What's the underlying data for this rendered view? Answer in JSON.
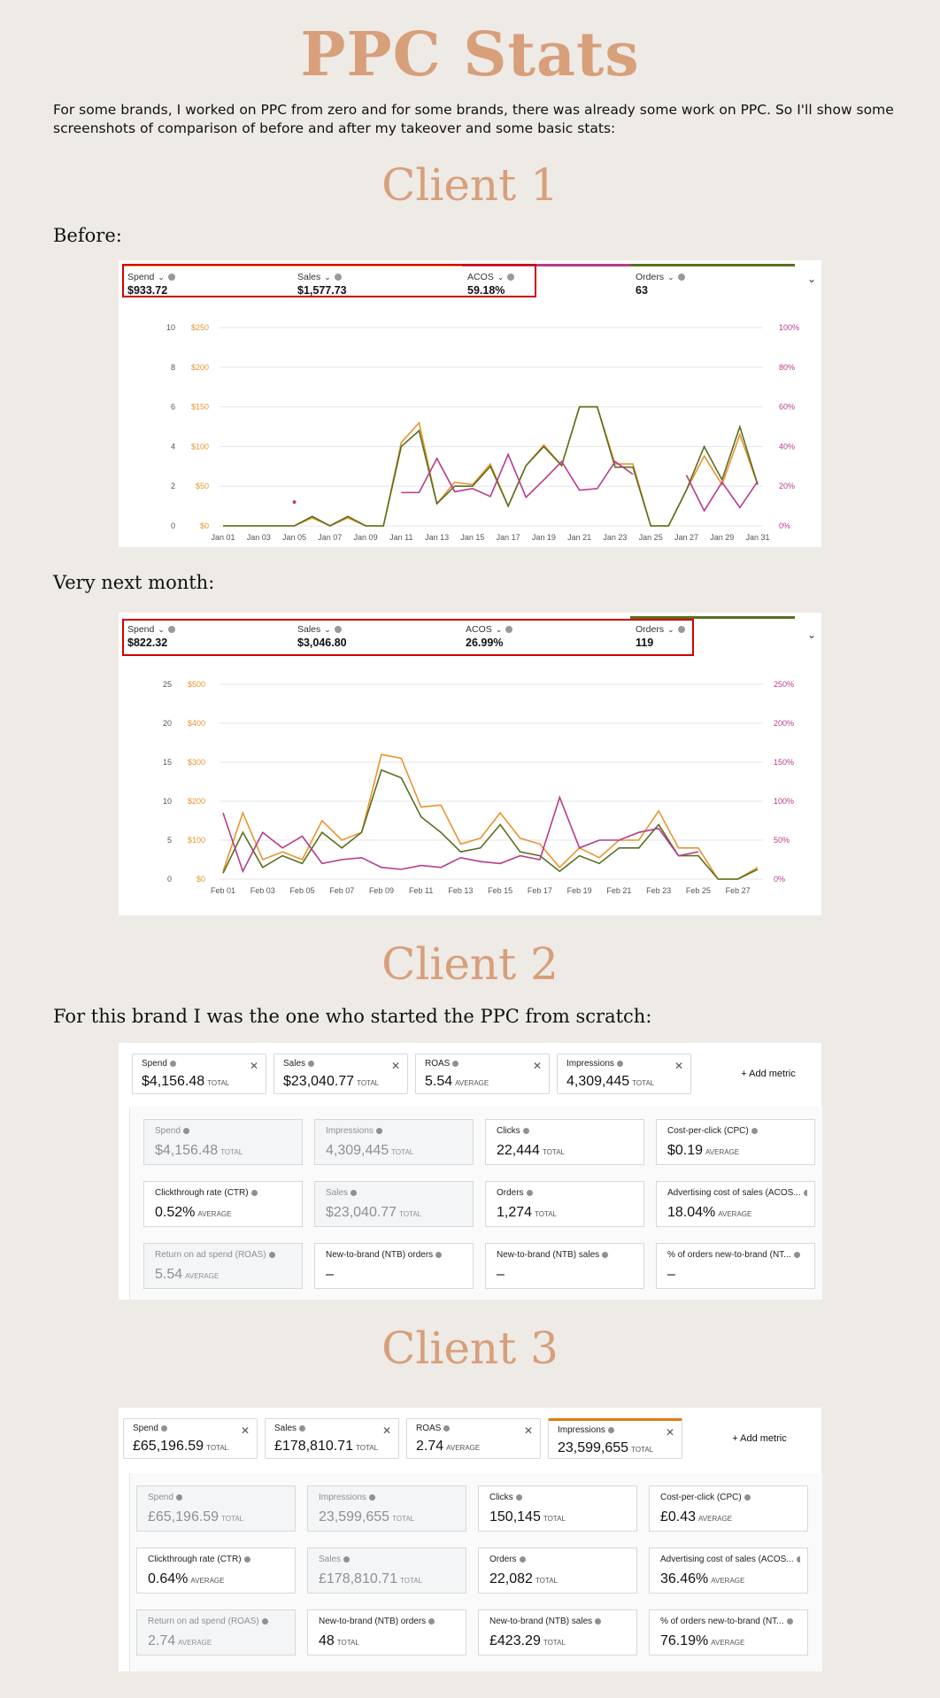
{
  "title": "PPC Stats",
  "intro": "For some brands, I worked on PPC from zero and for some brands, there was already some work on PPC. So I'll show some screenshots of comparison of before and after my takeover and some basic stats:",
  "client1": {
    "heading": "Client 1",
    "before_label": "Before:",
    "next_label": "Very next month:"
  },
  "chart_before": {
    "tiles": [
      {
        "label": "Spend",
        "value": "$933.72"
      },
      {
        "label": "Sales",
        "value": "$1,577.73"
      },
      {
        "label": "ACOS",
        "value": "59.18%"
      },
      {
        "label": "Orders",
        "value": "63"
      }
    ],
    "colors": {
      "spend": "#e8952e",
      "sales": "#5b6e1f",
      "acos": "#b83b8b",
      "orders": "#5b6e1f"
    }
  },
  "chart_after": {
    "tiles": [
      {
        "label": "Spend",
        "value": "$822.32"
      },
      {
        "label": "Sales",
        "value": "$3,046.80"
      },
      {
        "label": "ACOS",
        "value": "26.99%"
      },
      {
        "label": "Orders",
        "value": "119"
      }
    ]
  },
  "chart_data": [
    {
      "type": "line",
      "x": [
        "Jan 01",
        "Jan 02",
        "Jan 03",
        "Jan 04",
        "Jan 05",
        "Jan 06",
        "Jan 07",
        "Jan 08",
        "Jan 09",
        "Jan 10",
        "Jan 11",
        "Jan 12",
        "Jan 13",
        "Jan 14",
        "Jan 15",
        "Jan 16",
        "Jan 17",
        "Jan 18",
        "Jan 19",
        "Jan 20",
        "Jan 21",
        "Jan 22",
        "Jan 23",
        "Jan 24",
        "Jan 25",
        "Jan 26",
        "Jan 27",
        "Jan 28",
        "Jan 29",
        "Jan 30",
        "Jan 31"
      ],
      "xticks": [
        "Jan 01",
        "Jan 03",
        "Jan 05",
        "Jan 07",
        "Jan 09",
        "Jan 11",
        "Jan 13",
        "Jan 15",
        "Jan 17",
        "Jan 19",
        "Jan 21",
        "Jan 23",
        "Jan 25",
        "Jan 27",
        "Jan 29",
        "Jan 31"
      ],
      "left_ticks": [
        "0",
        "2",
        "4",
        "6",
        "8",
        "10"
      ],
      "mid_ticks": [
        "$0",
        "$50",
        "$100",
        "$150",
        "$200",
        "$250"
      ],
      "right_ticks": [
        "0%",
        "20%",
        "40%",
        "60%",
        "80%",
        "100%"
      ],
      "ylim": [
        0,
        250
      ],
      "series": [
        {
          "values": [
            0,
            0,
            0,
            0,
            0,
            10,
            0,
            10,
            0,
            0,
            105,
            130,
            28,
            55,
            52,
            78,
            25,
            76,
            102,
            76,
            150,
            150,
            78,
            78,
            0,
            0,
            45,
            88,
            52,
            115,
            52
          ]
        },
        {
          "values": [
            0,
            0,
            0,
            0,
            0,
            12,
            0,
            12,
            0,
            0,
            100,
            120,
            28,
            50,
            50,
            75,
            25,
            76,
            100,
            76,
            150,
            150,
            74,
            74,
            0,
            0,
            45,
            100,
            58,
            125,
            52
          ]
        },
        {
          "values": [
            null,
            null,
            null,
            null,
            30,
            null,
            null,
            null,
            null,
            null,
            42,
            42,
            85,
            43,
            47,
            37,
            90,
            36,
            58,
            81,
            45,
            47,
            81,
            65,
            null,
            null,
            64,
            19,
            55,
            23,
            56
          ]
        }
      ]
    },
    {
      "type": "line",
      "x": [
        "Feb 01",
        "Feb 02",
        "Feb 03",
        "Feb 04",
        "Feb 05",
        "Feb 06",
        "Feb 07",
        "Feb 08",
        "Feb 09",
        "Feb 10",
        "Feb 11",
        "Feb 12",
        "Feb 13",
        "Feb 14",
        "Feb 15",
        "Feb 16",
        "Feb 17",
        "Feb 18",
        "Feb 19",
        "Feb 20",
        "Feb 21",
        "Feb 22",
        "Feb 23",
        "Feb 24",
        "Feb 25",
        "Feb 26",
        "Feb 27",
        "Feb 28"
      ],
      "xticks": [
        "Feb 01",
        "Feb 03",
        "Feb 05",
        "Feb 07",
        "Feb 09",
        "Feb 11",
        "Feb 13",
        "Feb 15",
        "Feb 17",
        "Feb 19",
        "Feb 21",
        "Feb 23",
        "Feb 25",
        "Feb 27"
      ],
      "left_ticks": [
        "0",
        "5",
        "10",
        "15",
        "20",
        "25"
      ],
      "mid_ticks": [
        "$0",
        "$100",
        "$200",
        "$300",
        "$400",
        "$500"
      ],
      "right_ticks": [
        "0%",
        "50%",
        "100%",
        "150%",
        "200%",
        "250%"
      ],
      "ylim": [
        0,
        500
      ],
      "series": [
        {
          "values": [
            20,
            170,
            50,
            70,
            50,
            150,
            100,
            120,
            320,
            310,
            185,
            190,
            90,
            105,
            170,
            105,
            90,
            30,
            80,
            55,
            100,
            100,
            175,
            80,
            80,
            0,
            0,
            30
          ]
        },
        {
          "values": [
            15,
            120,
            30,
            60,
            40,
            120,
            80,
            120,
            280,
            260,
            160,
            120,
            70,
            80,
            140,
            70,
            60,
            20,
            60,
            40,
            80,
            80,
            140,
            60,
            60,
            0,
            0,
            25
          ]
        },
        {
          "values": [
            170,
            20,
            120,
            80,
            110,
            40,
            50,
            55,
            30,
            25,
            35,
            30,
            55,
            45,
            40,
            60,
            50,
            210,
            80,
            100,
            100,
            120,
            130,
            60,
            70,
            null,
            null,
            null
          ]
        }
      ]
    }
  ],
  "client2": {
    "heading": "Client 2",
    "label": "For this brand I was the one who started the PPC from scratch:",
    "top": [
      {
        "name": "Spend",
        "value": "$4,156.48",
        "suffix": "TOTAL"
      },
      {
        "name": "Sales",
        "value": "$23,040.77",
        "suffix": "TOTAL"
      },
      {
        "name": "ROAS",
        "value": "5.54",
        "suffix": "AVERAGE"
      },
      {
        "name": "Impressions",
        "value": "4,309,445",
        "suffix": "TOTAL"
      }
    ],
    "add_metric": "+ Add metric",
    "grid": [
      {
        "name": "Spend",
        "value": "$4,156.48",
        "suffix": "TOTAL"
      },
      {
        "name": "Impressions",
        "value": "4,309,445",
        "suffix": "TOTAL"
      },
      {
        "name": "Clicks",
        "value": "22,444",
        "suffix": "TOTAL"
      },
      {
        "name": "Cost-per-click (CPC)",
        "value": "$0.19",
        "suffix": "AVERAGE"
      },
      {
        "name": "Clickthrough rate (CTR)",
        "value": "0.52%",
        "suffix": "AVERAGE"
      },
      {
        "name": "Sales",
        "value": "$23,040.77",
        "suffix": "TOTAL"
      },
      {
        "name": "Orders",
        "value": "1,274",
        "suffix": "TOTAL"
      },
      {
        "name": "Advertising cost of sales (ACOS...",
        "value": "18.04%",
        "suffix": "AVERAGE"
      },
      {
        "name": "Return on ad spend (ROAS)",
        "value": "5.54",
        "suffix": "AVERAGE"
      },
      {
        "name": "New-to-brand (NTB) orders",
        "value": "–",
        "suffix": ""
      },
      {
        "name": "New-to-brand (NTB) sales",
        "value": "–",
        "suffix": ""
      },
      {
        "name": "% of orders new-to-brand (NT...",
        "value": "–",
        "suffix": ""
      }
    ]
  },
  "client3": {
    "heading": "Client 3",
    "top": [
      {
        "name": "Spend",
        "value": "£65,196.59",
        "suffix": "TOTAL"
      },
      {
        "name": "Sales",
        "value": "£178,810.71",
        "suffix": "TOTAL"
      },
      {
        "name": "ROAS",
        "value": "2.74",
        "suffix": "AVERAGE"
      },
      {
        "name": "Impressions",
        "value": "23,599,655",
        "suffix": "TOTAL"
      }
    ],
    "add_metric": "+ Add metric",
    "grid": [
      {
        "name": "Spend",
        "value": "£65,196.59",
        "suffix": "TOTAL"
      },
      {
        "name": "Impressions",
        "value": "23,599,655",
        "suffix": "TOTAL"
      },
      {
        "name": "Clicks",
        "value": "150,145",
        "suffix": "TOTAL"
      },
      {
        "name": "Cost-per-click (CPC)",
        "value": "£0.43",
        "suffix": "AVERAGE"
      },
      {
        "name": "Clickthrough rate (CTR)",
        "value": "0.64%",
        "suffix": "AVERAGE"
      },
      {
        "name": "Sales",
        "value": "£178,810.71",
        "suffix": "TOTAL"
      },
      {
        "name": "Orders",
        "value": "22,082",
        "suffix": "TOTAL"
      },
      {
        "name": "Advertising cost of sales (ACOS...",
        "value": "36.46%",
        "suffix": "AVERAGE"
      },
      {
        "name": "Return on ad spend (ROAS)",
        "value": "2.74",
        "suffix": "AVERAGE"
      },
      {
        "name": "New-to-brand (NTB) orders",
        "value": "48",
        "suffix": "TOTAL"
      },
      {
        "name": "New-to-brand (NTB) sales",
        "value": "£423.29",
        "suffix": "TOTAL"
      },
      {
        "name": "% of orders new-to-brand (NT...",
        "value": "76.19%",
        "suffix": "AVERAGE"
      }
    ]
  }
}
